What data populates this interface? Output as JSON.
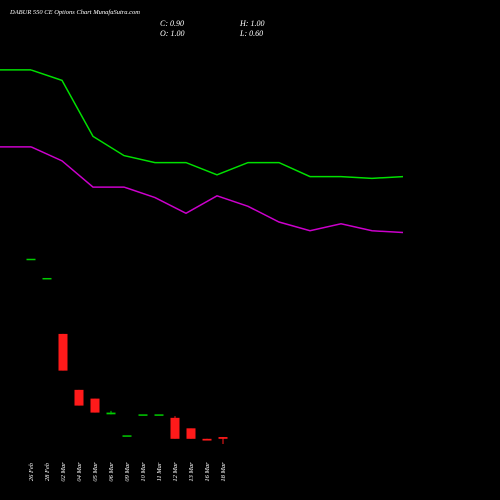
{
  "chart_data": {
    "type": "candlestick",
    "title": "DABUR 550 CE Options Chart MunafaSutra.com",
    "ohlc_labels": {
      "close": "C: 0.90",
      "high": "H: 1.00",
      "open": "O: 1.00",
      "low": "L: 0.60"
    },
    "categories": [
      "26 Feb",
      "28 Feb",
      "02 Mar",
      "04 Mar",
      "05 Mar",
      "06 Mar",
      "09 Mar",
      "10 Mar",
      "11 Mar",
      "12 Mar",
      "13 Mar",
      "16 Mar",
      "18 Mar"
    ],
    "open": [
      11.2,
      10.1,
      6.9,
      3.7,
      3.2,
      2.3,
      1.1,
      2.3,
      2.3,
      2.1,
      1.5,
      0.9,
      1.0
    ],
    "high": [
      11.2,
      10.1,
      6.9,
      3.7,
      3.2,
      2.5,
      1.1,
      2.3,
      2.3,
      2.2,
      1.5,
      0.9,
      1.0
    ],
    "low": [
      11.2,
      10.1,
      4.8,
      2.8,
      2.4,
      2.3,
      1.1,
      2.3,
      2.3,
      0.9,
      0.9,
      0.8,
      0.6
    ],
    "close": [
      11.2,
      10.1,
      4.8,
      2.8,
      2.4,
      2.4,
      1.1,
      2.3,
      2.3,
      0.9,
      0.9,
      0.8,
      0.9
    ],
    "up_color": "#00cc00",
    "down_color": "#ff1a1a",
    "lines": [
      {
        "color": "#00e000",
        "values": [
          22.0,
          21.4,
          18.2,
          17.1,
          16.7,
          16.7,
          16.0,
          16.7,
          16.7,
          15.9,
          15.9,
          15.8,
          15.9
        ]
      },
      {
        "color": "#cc00cc",
        "values": [
          17.6,
          16.8,
          15.3,
          15.3,
          14.7,
          13.8,
          14.8,
          14.2,
          13.3,
          12.8,
          13.2,
          12.8,
          12.7
        ]
      }
    ],
    "ylim": [
      -2.6,
      26.0
    ]
  }
}
